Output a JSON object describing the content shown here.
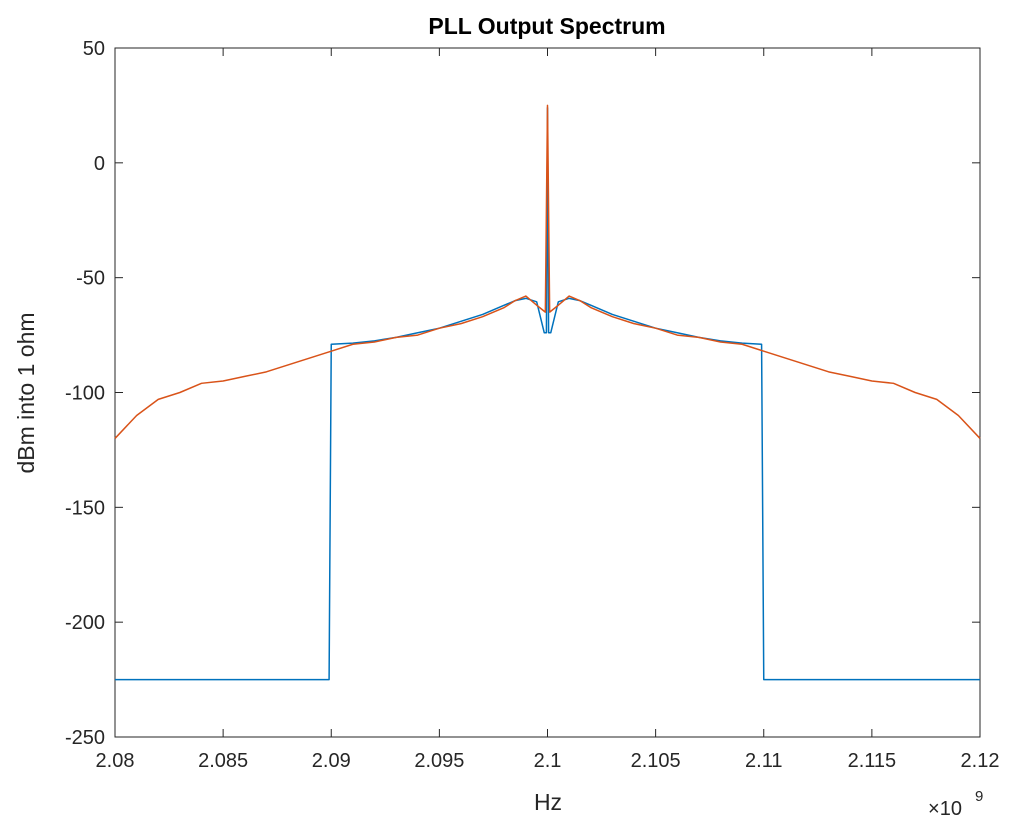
{
  "chart_data": {
    "type": "line",
    "title": "PLL Output Spectrum",
    "xlabel": "Hz",
    "ylabel": "dBm into 1 ohm",
    "x_exponent_label": "×10",
    "x_exponent": "9",
    "xlim": [
      2.08,
      2.12
    ],
    "ylim": [
      -250,
      50
    ],
    "x_scale_factor": 1000000000.0,
    "xticks": [
      "2.08",
      "2.085",
      "2.09",
      "2.095",
      "2.1",
      "2.105",
      "2.11",
      "2.115",
      "2.12"
    ],
    "yticks": [
      "50",
      "0",
      "-50",
      "-100",
      "-150",
      "-200",
      "-250"
    ],
    "grid": false,
    "legend": "none",
    "series": [
      {
        "color": "#0072BD",
        "x": [
          2.08,
          2.0899,
          2.09,
          2.091,
          2.092,
          2.093,
          2.094,
          2.095,
          2.096,
          2.097,
          2.098,
          2.0985,
          2.099,
          2.0995,
          2.09985,
          2.09995,
          2.1,
          2.10005,
          2.10015,
          2.1005,
          2.101,
          2.1015,
          2.102,
          2.103,
          2.104,
          2.105,
          2.106,
          2.107,
          2.108,
          2.109,
          2.1099,
          2.11,
          2.12
        ],
        "y": [
          -225,
          -225,
          -79,
          -78.5,
          -77.5,
          -76,
          -74,
          -72,
          -69,
          -66,
          -62,
          -60,
          -59,
          -60.5,
          -74,
          -74,
          24,
          -74,
          -74,
          -60.5,
          -59,
          -60,
          -62,
          -66,
          -69,
          -72,
          -74,
          -76,
          -77.5,
          -78.5,
          -79,
          -225,
          -225
        ]
      },
      {
        "color": "#D95319",
        "x": [
          2.08,
          2.081,
          2.082,
          2.083,
          2.084,
          2.085,
          2.086,
          2.087,
          2.088,
          2.089,
          2.09,
          2.091,
          2.092,
          2.093,
          2.094,
          2.095,
          2.096,
          2.097,
          2.098,
          2.0985,
          2.099,
          2.0995,
          2.0999,
          2.1,
          2.1001,
          2.1005,
          2.101,
          2.1015,
          2.102,
          2.103,
          2.104,
          2.105,
          2.106,
          2.107,
          2.108,
          2.109,
          2.11,
          2.111,
          2.112,
          2.113,
          2.114,
          2.115,
          2.116,
          2.117,
          2.118,
          2.119,
          2.12
        ],
        "y": [
          -120,
          -110,
          -103,
          -100,
          -96,
          -95,
          -93,
          -91,
          -88,
          -85,
          -82,
          -79,
          -78,
          -76,
          -75,
          -72,
          -70,
          -67,
          -63,
          -60,
          -58,
          -62,
          -65,
          25,
          -65,
          -62,
          -58,
          -60,
          -63,
          -67,
          -70,
          -72,
          -75,
          -76,
          -78,
          -79,
          -82,
          -85,
          -88,
          -91,
          -93,
          -95,
          -96,
          -100,
          -103,
          -110,
          -120
        ]
      }
    ]
  }
}
